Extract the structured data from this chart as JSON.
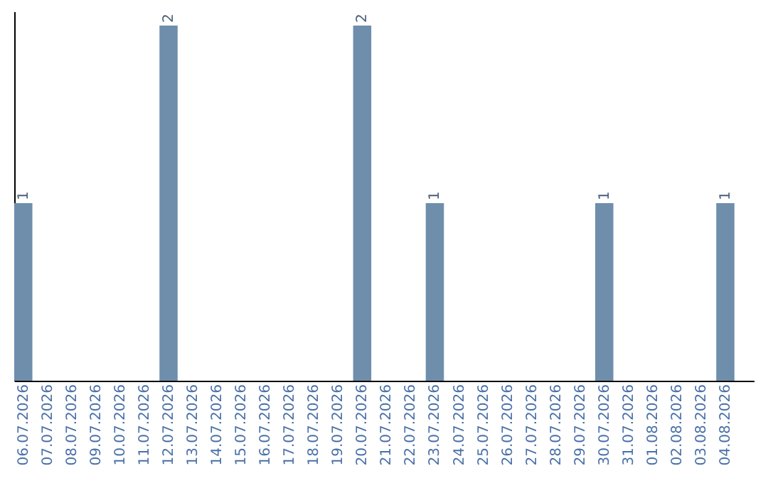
{
  "chart_data": {
    "type": "bar",
    "categories": [
      "06.07.2026",
      "07.07.2026",
      "08.07.2026",
      "09.07.2026",
      "10.07.2026",
      "11.07.2026",
      "12.07.2026",
      "13.07.2026",
      "14.07.2026",
      "15.07.2026",
      "16.07.2026",
      "17.07.2026",
      "18.07.2026",
      "19.07.2026",
      "20.07.2026",
      "21.07.2026",
      "22.07.2026",
      "23.07.2026",
      "24.07.2026",
      "25.07.2026",
      "26.07.2026",
      "27.07.2026",
      "28.07.2026",
      "29.07.2026",
      "30.07.2026",
      "31.07.2026",
      "01.08.2026",
      "02.08.2026",
      "03.08.2026",
      "04.08.2026"
    ],
    "values": [
      1,
      0,
      0,
      0,
      0,
      0,
      2,
      0,
      0,
      0,
      0,
      0,
      0,
      0,
      2,
      0,
      0,
      1,
      0,
      0,
      0,
      0,
      0,
      0,
      1,
      0,
      0,
      0,
      0,
      1
    ],
    "value_labels": [
      "1",
      null,
      null,
      null,
      null,
      null,
      "2",
      null,
      null,
      null,
      null,
      null,
      null,
      null,
      "2",
      null,
      null,
      "1",
      null,
      null,
      null,
      null,
      null,
      null,
      "1",
      null,
      null,
      null,
      null,
      "1"
    ],
    "color": "#6e8eac",
    "ylim": [
      0,
      2.08
    ],
    "grid": false,
    "tick_labels": "x"
  }
}
